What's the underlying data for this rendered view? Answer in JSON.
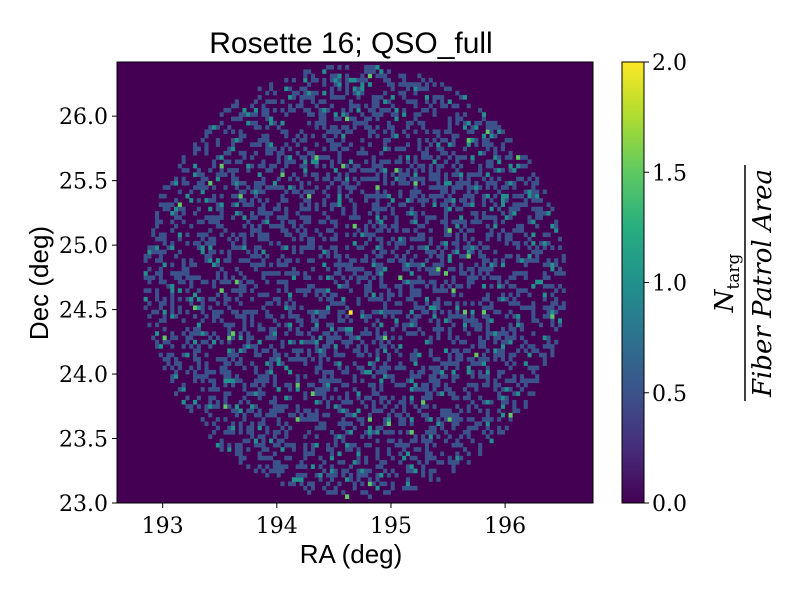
{
  "chart_data": {
    "type": "heatmap",
    "title": "Rosette 16; QSO_full",
    "xlabel": "RA (deg)",
    "ylabel": "Dec (deg)",
    "xlim": [
      192.6,
      196.77
    ],
    "ylim": [
      23.0,
      26.42
    ],
    "xticks": [
      193,
      194,
      195,
      196
    ],
    "yticks": [
      23.0,
      23.5,
      24.0,
      24.5,
      25.0,
      25.5,
      26.0
    ],
    "colorbar": {
      "label_numerator": "N",
      "label_numerator_sub": "targ",
      "label_denominator": "Fiber Patrol Area",
      "range": [
        0.0,
        2.0
      ],
      "ticks": [
        0.0,
        0.5,
        1.0,
        1.5,
        2.0
      ],
      "colormap": "viridis"
    },
    "field": {
      "center_ra": 194.68,
      "center_dec": 24.72,
      "radius_deg": 1.68,
      "bin_deg": 0.0333,
      "fill_fraction": 0.38,
      "high_fraction": 0.12,
      "peak_ra": 194.63,
      "peak_dec": 24.46,
      "peak_value": 2.0
    },
    "colors": {
      "background": "#440154",
      "value_0_5": "#3b528b",
      "value_1_0": "#21918c",
      "value_1_5": "#5ec962",
      "value_2_0": "#fde725"
    }
  }
}
